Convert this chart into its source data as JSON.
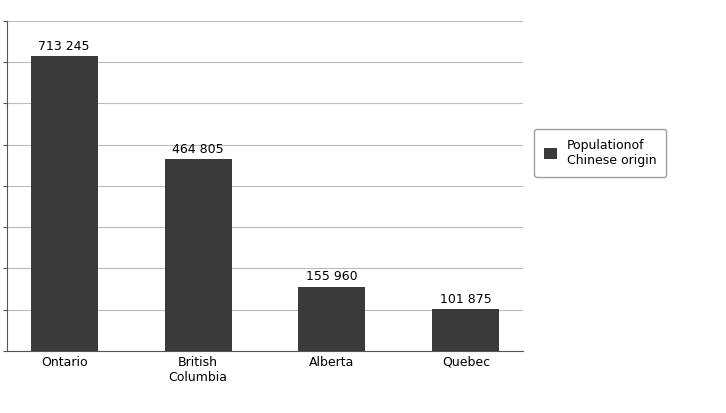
{
  "categories": [
    "Ontario",
    "British\nColumbia",
    "Alberta",
    "Quebec"
  ],
  "values": [
    713245,
    464805,
    155960,
    101875
  ],
  "bar_labels": [
    "713 245",
    "464 805",
    "155 960",
    "101 875"
  ],
  "bar_color": "#3a3a3a",
  "ylim": [
    0,
    800000
  ],
  "ytick_step": 100000,
  "legend_label": "Populationof\nChinese origin",
  "background_color": "#ffffff",
  "grid_color": "#bbbbbb",
  "bar_width": 0.5
}
